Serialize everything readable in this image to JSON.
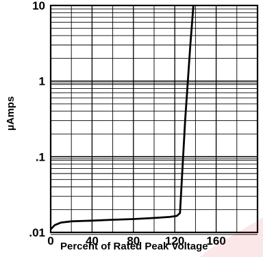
{
  "chart_data": {
    "type": "line",
    "title": "",
    "xlabel": "Percent of Rated Peak Voltage",
    "ylabel": "µAmps",
    "x_scale": "linear",
    "y_scale": "log",
    "xlim": [
      0,
      200
    ],
    "ylim": [
      0.01,
      10
    ],
    "x_ticks": [
      0,
      40,
      80,
      120,
      160
    ],
    "x_tick_labels": [
      "0",
      "40",
      "80",
      "120",
      "160"
    ],
    "y_ticks": [
      0.01,
      0.1,
      1,
      10
    ],
    "y_tick_labels": [
      ".01",
      ".1",
      "1",
      "10"
    ],
    "grid": true,
    "legend": "none",
    "series": [
      {
        "x": [
          0,
          4,
          10,
          20,
          40,
          60,
          80,
          100,
          115,
          122,
          125,
          130,
          135,
          138
        ],
        "y": [
          0.011,
          0.0125,
          0.0135,
          0.014,
          0.0143,
          0.0147,
          0.015,
          0.0155,
          0.016,
          0.0165,
          0.018,
          0.3,
          3,
          10
        ]
      }
    ],
    "colors": {
      "line": "#000000",
      "grid": "#000000",
      "watermark": "#e03040"
    }
  }
}
